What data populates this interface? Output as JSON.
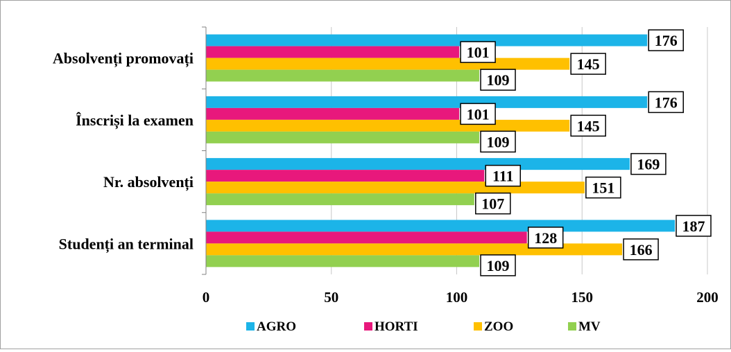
{
  "chart_data": {
    "type": "bar",
    "orientation": "horizontal",
    "categories": [
      "Studenți an terminal",
      "Nr. absolvenți",
      "Înscriși la examen",
      "Absolvenți promovați"
    ],
    "series": [
      {
        "name": "AGRO",
        "color": "#1CB4E8",
        "values": [
          187,
          169,
          176,
          176
        ]
      },
      {
        "name": "HORTI",
        "color": "#E8187C",
        "values": [
          128,
          111,
          101,
          101
        ]
      },
      {
        "name": "ZOO",
        "color": "#FFC000",
        "values": [
          166,
          151,
          145,
          145
        ]
      },
      {
        "name": "MV",
        "color": "#92D050",
        "values": [
          109,
          107,
          109,
          109
        ]
      }
    ],
    "xlim": [
      0,
      200
    ],
    "xticks": [
      0,
      50,
      100,
      150,
      200
    ],
    "grid": "vertical",
    "legend_position": "bottom",
    "data_labels": "boxed"
  }
}
